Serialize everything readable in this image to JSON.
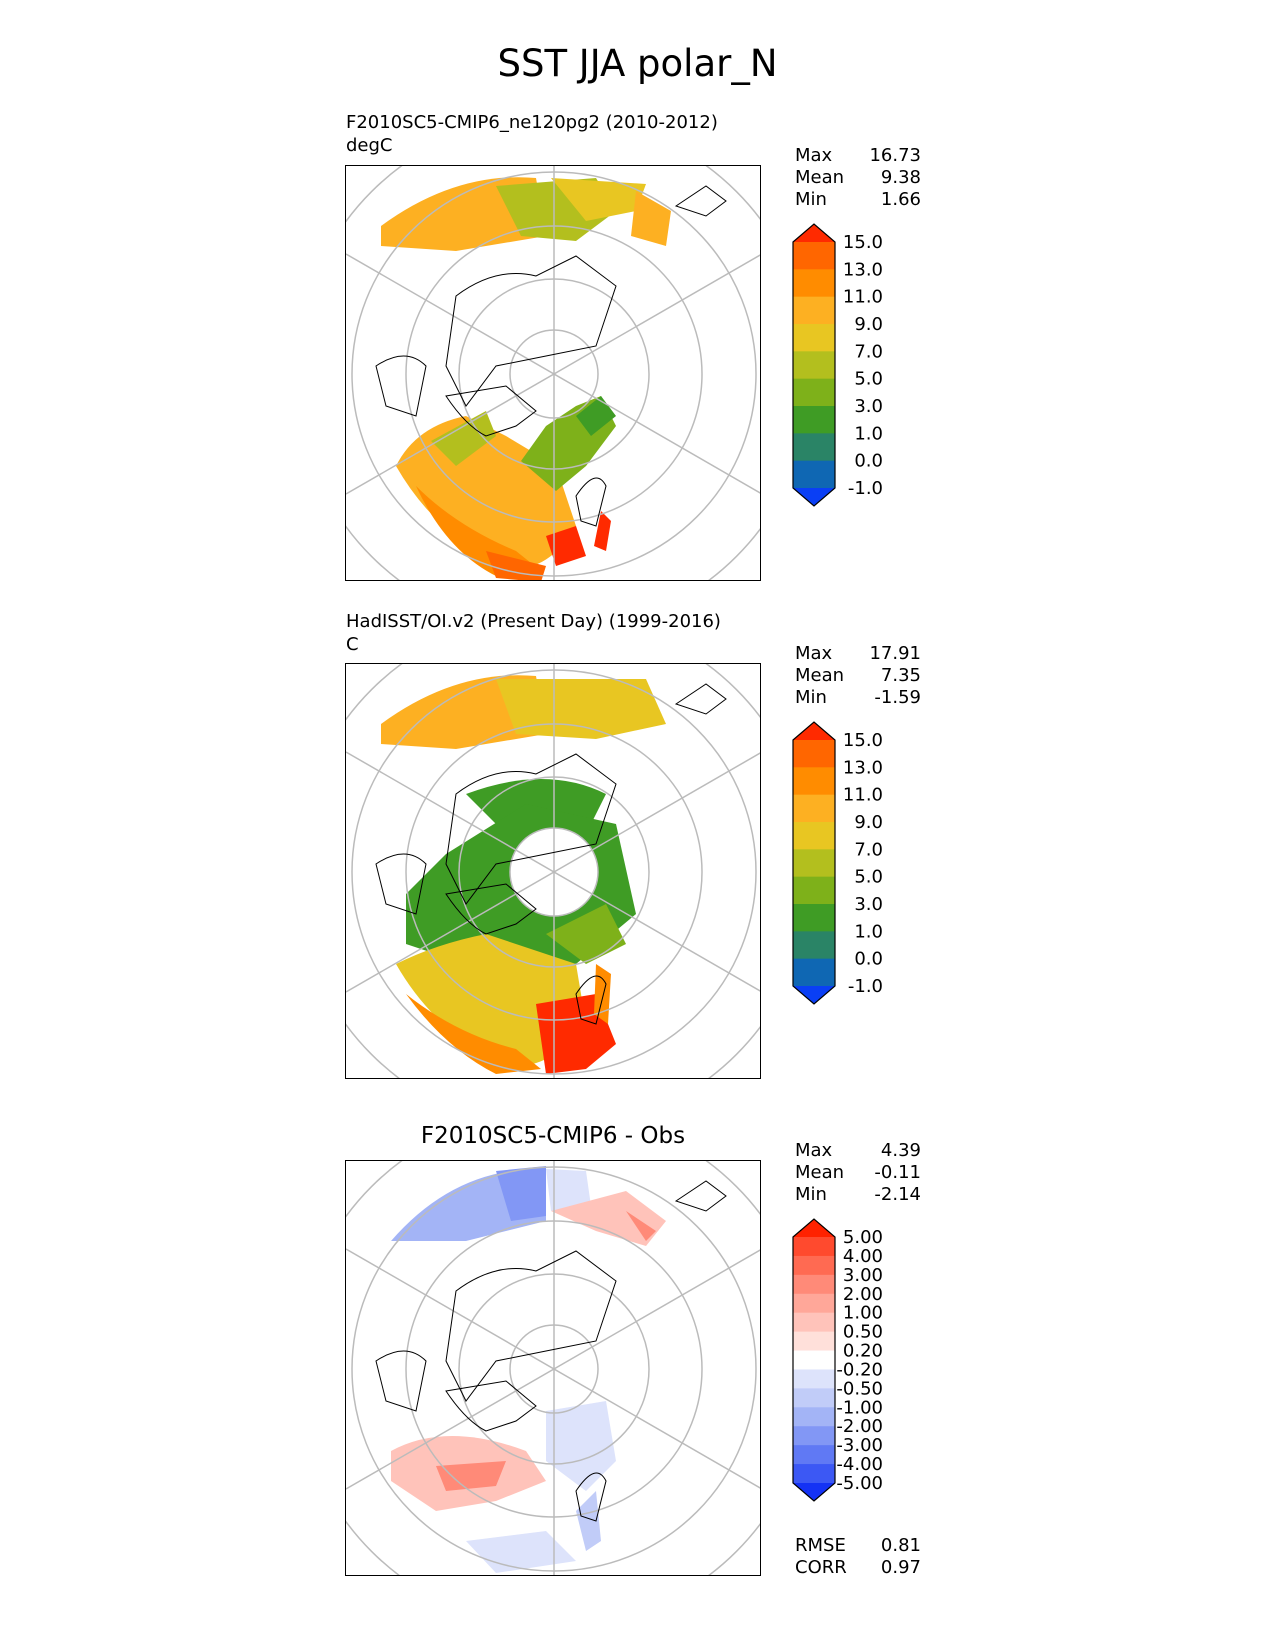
{
  "figure": {
    "title": "SST JJA polar_N"
  },
  "panels": [
    {
      "id": "test",
      "title_line1": "F2010SC5-CMIP6_ne120pg2 (2010-2012)",
      "title_line2": "degC",
      "stats": [
        [
          "Max",
          "16.73"
        ],
        [
          "Mean",
          "9.38"
        ],
        [
          "Min",
          "1.66"
        ]
      ],
      "colorbar": {
        "labels": [
          "15.0",
          "13.0",
          "11.0",
          "9.0",
          "7.0",
          "5.0",
          "3.0",
          "1.0",
          "0.0",
          "-1.0"
        ],
        "colors": [
          "#ff2a00",
          "#ff6600",
          "#ff8c00",
          "#fdb022",
          "#e8c622",
          "#b3bf1e",
          "#7eb11a",
          "#3f9c25",
          "#2a8466",
          "#0f67b3",
          "#0a3ff5"
        ]
      }
    },
    {
      "id": "reference",
      "title_line1": "HadISST/OI.v2 (Present Day) (1999-2016)",
      "title_line2": "C",
      "stats": [
        [
          "Max",
          "17.91"
        ],
        [
          "Mean",
          "7.35"
        ],
        [
          "Min",
          "-1.59"
        ]
      ],
      "colorbar": {
        "labels": [
          "15.0",
          "13.0",
          "11.0",
          "9.0",
          "7.0",
          "5.0",
          "3.0",
          "1.0",
          "0.0",
          "-1.0"
        ],
        "colors": [
          "#ff2a00",
          "#ff6600",
          "#ff8c00",
          "#fdb022",
          "#e8c622",
          "#b3bf1e",
          "#7eb11a",
          "#3f9c25",
          "#2a8466",
          "#0f67b3",
          "#0a3ff5"
        ]
      }
    },
    {
      "id": "difference",
      "title": "F2010SC5-CMIP6 - Obs",
      "stats": [
        [
          "Max",
          "4.39"
        ],
        [
          "Mean",
          "-0.11"
        ],
        [
          "Min",
          "-2.14"
        ]
      ],
      "extra_stats": [
        [
          "RMSE",
          "0.81"
        ],
        [
          "CORR",
          "0.97"
        ]
      ],
      "colorbar": {
        "labels": [
          "5.00",
          "4.00",
          "3.00",
          "2.00",
          "1.00",
          "0.50",
          "0.20",
          "-0.20",
          "-0.50",
          "-1.00",
          "-2.00",
          "-3.00",
          "-4.00",
          "-5.00"
        ],
        "colors": [
          "#ff2200",
          "#ff4a2e",
          "#ff6a52",
          "#ff8a78",
          "#ffa799",
          "#ffc3ba",
          "#ffe0da",
          "#ffffff",
          "#dde3fb",
          "#c1ccf8",
          "#a3b4f6",
          "#8297f5",
          "#6079f4",
          "#3c58f4",
          "#1432f5"
        ]
      }
    }
  ]
}
